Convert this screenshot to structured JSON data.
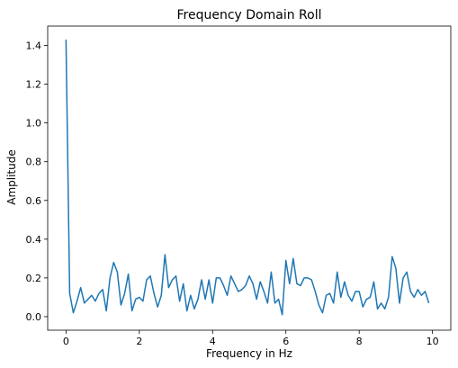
{
  "chart_data": {
    "type": "line",
    "title": "Frequency Domain Roll",
    "xlabel": "Frequency in Hz",
    "ylabel": "Amplitude",
    "xlim": [
      -0.5,
      10.5
    ],
    "ylim": [
      -0.07,
      1.5
    ],
    "xticks": [
      0,
      2,
      4,
      6,
      8,
      10
    ],
    "xtick_labels": [
      "0",
      "2",
      "4",
      "6",
      "8",
      "10"
    ],
    "yticks": [
      0.0,
      0.2,
      0.4,
      0.6,
      0.8,
      1.0,
      1.2,
      1.4
    ],
    "ytick_labels": [
      "0.0",
      "0.2",
      "0.4",
      "0.6",
      "0.8",
      "1.0",
      "1.2",
      "1.4"
    ],
    "grid": false,
    "legend": "none",
    "line_color": "#1f77b4",
    "x_start": 0,
    "x_step": 0.1,
    "values": [
      1.43,
      0.12,
      0.02,
      0.08,
      0.15,
      0.07,
      0.09,
      0.11,
      0.08,
      0.12,
      0.14,
      0.03,
      0.2,
      0.28,
      0.23,
      0.06,
      0.12,
      0.22,
      0.03,
      0.09,
      0.1,
      0.08,
      0.19,
      0.21,
      0.12,
      0.05,
      0.11,
      0.32,
      0.15,
      0.19,
      0.21,
      0.08,
      0.17,
      0.03,
      0.11,
      0.04,
      0.09,
      0.19,
      0.09,
      0.19,
      0.07,
      0.2,
      0.2,
      0.16,
      0.11,
      0.21,
      0.17,
      0.13,
      0.14,
      0.16,
      0.21,
      0.17,
      0.09,
      0.18,
      0.13,
      0.07,
      0.23,
      0.07,
      0.09,
      0.01,
      0.29,
      0.17,
      0.3,
      0.17,
      0.16,
      0.2,
      0.2,
      0.19,
      0.13,
      0.06,
      0.02,
      0.11,
      0.12,
      0.07,
      0.23,
      0.1,
      0.18,
      0.11,
      0.08,
      0.13,
      0.13,
      0.05,
      0.09,
      0.1,
      0.18,
      0.04,
      0.07,
      0.04,
      0.1,
      0.31,
      0.25,
      0.07,
      0.2,
      0.23,
      0.13,
      0.1,
      0.14,
      0.11,
      0.13,
      0.07
    ]
  }
}
